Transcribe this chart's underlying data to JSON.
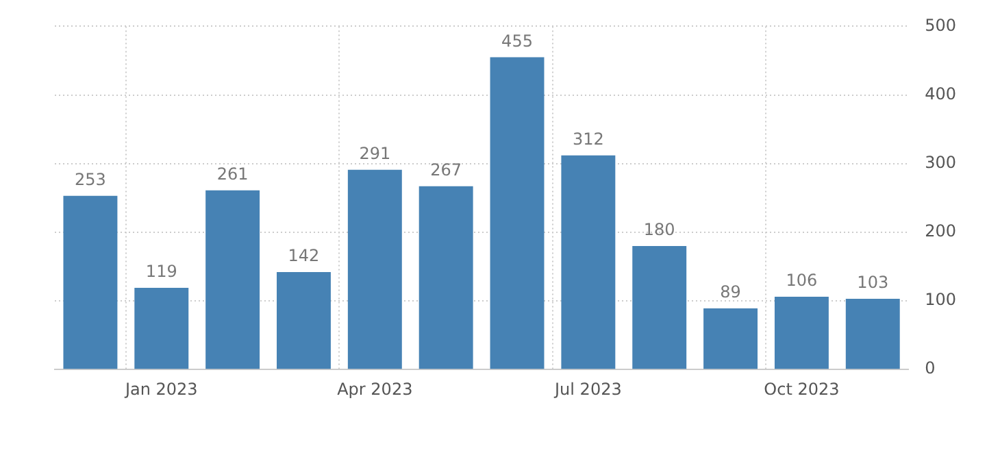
{
  "chart_data": {
    "type": "bar",
    "categories": [
      null,
      "Jan 2023",
      null,
      null,
      "Apr 2023",
      null,
      null,
      "Jul 2023",
      null,
      null,
      "Oct 2023",
      null
    ],
    "values": [
      253,
      119,
      261,
      142,
      291,
      267,
      455,
      312,
      180,
      89,
      106,
      103
    ],
    "color": "#4682b4",
    "ylim": [
      0,
      500
    ],
    "yticks": [
      0,
      100,
      200,
      300,
      400,
      500
    ],
    "grid": true,
    "data_labels": true,
    "legend": false
  }
}
